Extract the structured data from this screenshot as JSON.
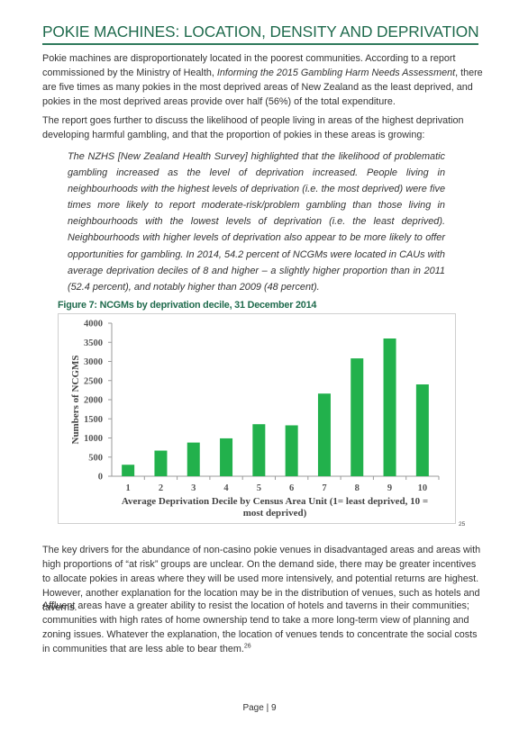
{
  "document": {
    "title": "POKIE MACHINES: LOCATION, DENSITY AND DEPRIVATION",
    "paragraph1": {
      "before": "Pokie machines are disproportionately located in the poorest communities. According to a report commissioned by the Ministry of Health, ",
      "italic": "Informing the 2015 Gambling Harm Needs Assessment",
      "after": ", there are five times as many pokies in the most deprived areas of New Zealand as the least deprived, and pokies in the most deprived areas provide over half (56%) of the total expenditure."
    },
    "paragraph2": "The report goes further to discuss the likelihood of people living in areas of the highest deprivation developing harmful gambling, and that the proportion of pokies in these areas is growing:",
    "quote": "The NZHS [New Zealand Health Survey] highlighted that the likelihood of problematic gambling increased as the level of deprivation increased. People living in neighbourhoods with the highest levels of deprivation (i.e. the most deprived) were five times more likely to report moderate-risk/problem gambling than those living in neighbourhoods with the lowest levels of deprivation (i.e. the least deprived). Neighbourhoods with higher levels of deprivation also appear to be more likely to offer opportunities for gambling. In 2014, 54.2 percent of NCGMs were located in CAUs with average deprivation deciles of 8 and higher – a slightly higher proportion than in 2011 (52.4 percent), and notably higher than 2009 (48 percent).",
    "figure_caption": "Figure 7: NCGMs by deprivation decile, 31 December 2014",
    "figure_footnote": "25",
    "paragraph3": "The key drivers for the abundance of non-casino pokie venues in disadvantaged areas and areas with high proportions of “at risk” groups are unclear. On the demand side, there may be greater incentives to allocate pokies in areas where they will be used more intensively, and potential returns are highest. However, another explanation for the location may be in the distribution of venues, such as hotels and taverns.",
    "paragraph4": "Affluent areas have a greater ability to resist the location of hotels and taverns in their communities; communities with high rates of home ownership tend to take a more long-term view of planning and zoning issues. Whatever the explanation, the location of venues tends to concentrate the social costs in communities that are less able to bear them.",
    "paragraph4_footnote": "26",
    "page_number": "Page | 9",
    "colors": {
      "heading": "#1e6a4c",
      "bar": "#22b14c"
    }
  },
  "chart_data": {
    "type": "bar",
    "categories": [
      "1",
      "2",
      "3",
      "4",
      "5",
      "6",
      "7",
      "8",
      "9",
      "10"
    ],
    "values": [
      300,
      670,
      880,
      990,
      1360,
      1330,
      2160,
      3080,
      3600,
      2400
    ],
    "xlabel": "Average Deprivation Decile by Census Area Unit (1= least deprived, 10 = most deprived)",
    "ylabel": "Numbers of NCGMS",
    "ylim": [
      0,
      4000
    ],
    "yticks": [
      "0",
      "500",
      "1000",
      "1500",
      "2000",
      "2500",
      "3000",
      "3500",
      "4000"
    ],
    "grid": false,
    "legend": "none"
  }
}
